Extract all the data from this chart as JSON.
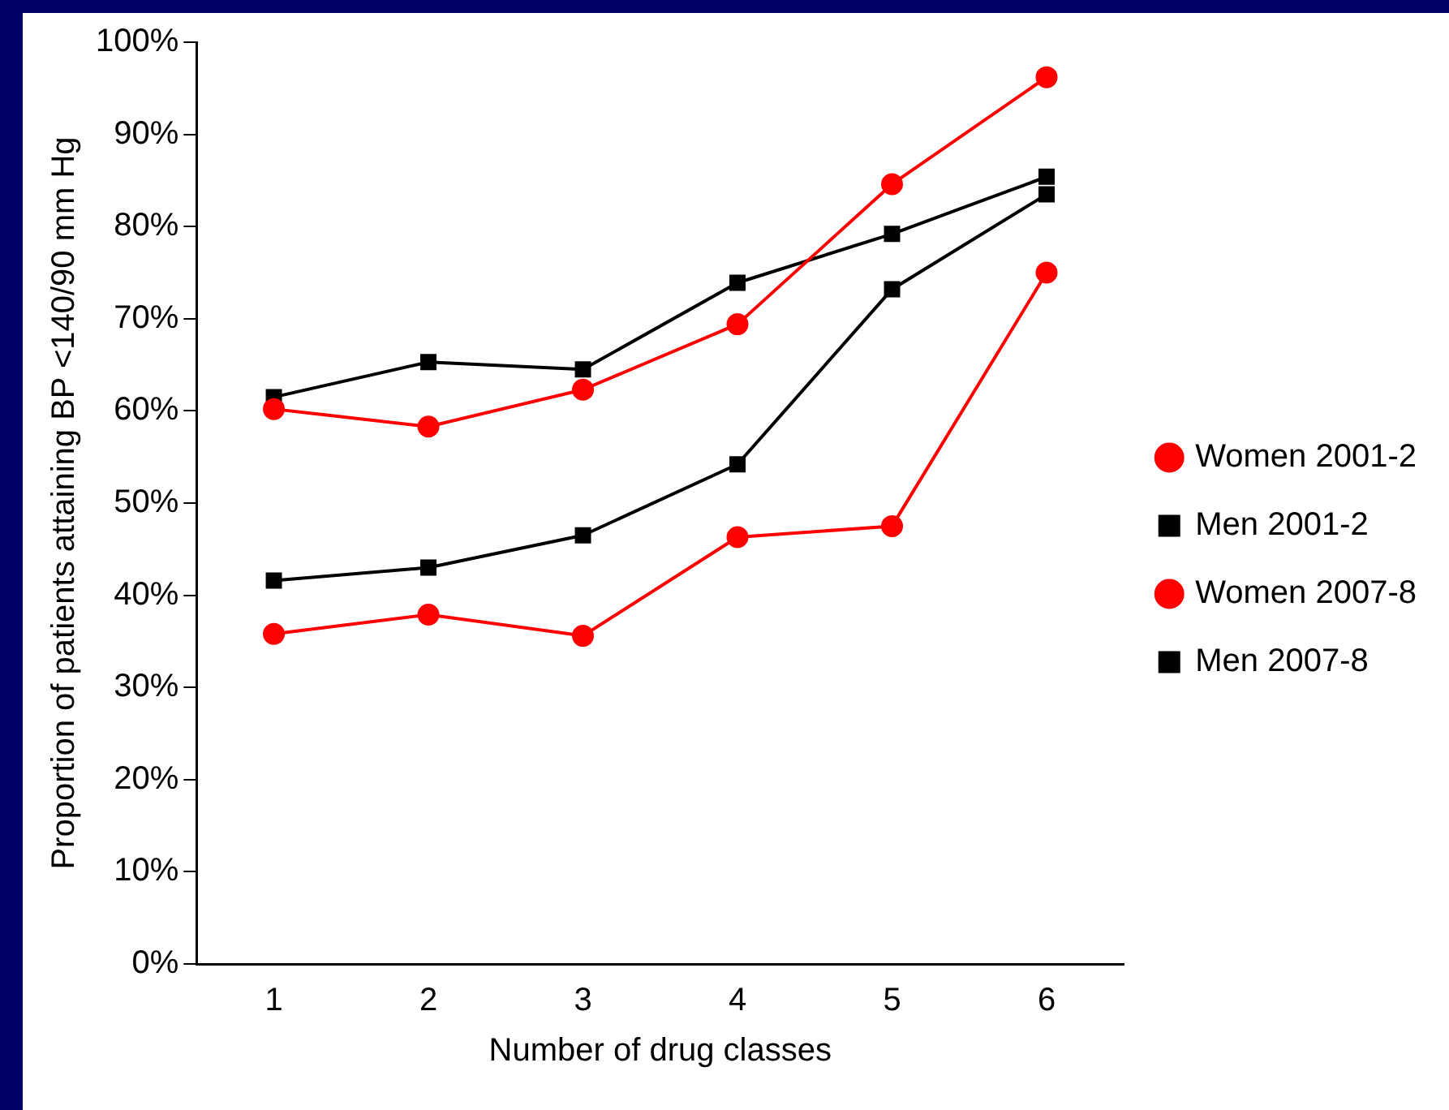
{
  "chart_data": {
    "type": "line",
    "xlabel": "Number of drug classes",
    "ylabel": "Proportion of patients attaining BP <140/90 mm Hg",
    "categories": [
      "1",
      "2",
      "3",
      "4",
      "5",
      "6"
    ],
    "series": [
      {
        "name": "Women 2001-2",
        "color": "#ff0000",
        "marker": "circle",
        "values": [
          35.8,
          37.9,
          35.6,
          46.3,
          47.5,
          75.0
        ]
      },
      {
        "name": "Men 2001-2",
        "color": "#000000",
        "marker": "square",
        "values": [
          41.6,
          43.0,
          46.5,
          54.2,
          73.2,
          83.5
        ]
      },
      {
        "name": "Women 2007-8",
        "color": "#ff0000",
        "marker": "circle",
        "values": [
          60.2,
          58.3,
          62.3,
          69.4,
          84.6,
          96.2
        ]
      },
      {
        "name": "Men 2007-8",
        "color": "#000000",
        "marker": "square",
        "values": [
          61.5,
          65.3,
          64.5,
          73.9,
          79.2,
          85.4
        ]
      }
    ],
    "ylim": [
      0,
      100
    ],
    "yticks": [
      {
        "value": 0,
        "label": "0%"
      },
      {
        "value": 10,
        "label": "10%"
      },
      {
        "value": 20,
        "label": "20%"
      },
      {
        "value": 30,
        "label": "30%"
      },
      {
        "value": 40,
        "label": "40%"
      },
      {
        "value": 50,
        "label": "50%"
      },
      {
        "value": 60,
        "label": "60%"
      },
      {
        "value": 70,
        "label": "70%"
      },
      {
        "value": 80,
        "label": "80%"
      },
      {
        "value": 90,
        "label": "90%"
      },
      {
        "value": 100,
        "label": "100%"
      }
    ],
    "grid": false,
    "legend": "right",
    "line_style": "solid"
  }
}
